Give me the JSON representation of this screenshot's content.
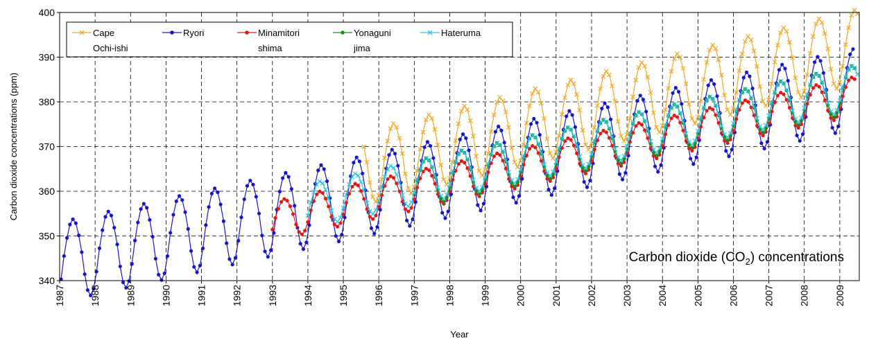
{
  "chart_data": {
    "type": "line",
    "xlabel": "Year",
    "ylabel": "Carbon dioxide concentrations (ppm)",
    "annotation": {
      "prefix": "Carbon dioxide (CO",
      "sub": "2",
      "suffix": ") concentrations"
    },
    "xlim": [
      1987.0,
      2009.55
    ],
    "ylim": [
      340,
      400
    ],
    "x_ticks": [
      1987,
      1988,
      1989,
      1990,
      1991,
      1992,
      1993,
      1994,
      1995,
      1996,
      1997,
      1998,
      1999,
      2000,
      2001,
      2002,
      2003,
      2004,
      2005,
      2006,
      2007,
      2008,
      2009
    ],
    "y_ticks": [
      340,
      350,
      360,
      370,
      380,
      390,
      400
    ],
    "grid": true,
    "legend_position": "top-left",
    "series": [
      {
        "name": "Cape\nOchi-ishi",
        "color": "#F5A623",
        "marker": "x",
        "start": 1995.58,
        "end": 2009.5,
        "base": 350.0,
        "trend": 1.95,
        "amp": 7.2,
        "offset": -0.4
      },
      {
        "name": "Ryori",
        "color": "#1515CC",
        "marker": "circle",
        "start": 1987.04,
        "end": 2009.42,
        "base": 345.0,
        "trend": 1.73,
        "amp": 7.8,
        "offset": 0.3
      },
      {
        "name": "Minamitori\nshima",
        "color": "#E81515",
        "marker": "circle",
        "start": 1993.0,
        "end": 2009.42,
        "base": 344.6,
        "trend": 1.7,
        "amp": 3.8,
        "offset": -0.9
      },
      {
        "name": "Yonaguni\njima",
        "color": "#1A8C1A",
        "marker": "circle",
        "start": 1997.0,
        "end": 2009.42,
        "base": 345.0,
        "trend": 1.72,
        "amp": 4.6,
        "offset": 0.0
      },
      {
        "name": "Hateruma",
        "color": "#22C6E6",
        "marker": "x",
        "start": 1994.0,
        "end": 2009.5,
        "base": 345.3,
        "trend": 1.72,
        "amp": 4.3,
        "offset": 0.0
      }
    ]
  }
}
